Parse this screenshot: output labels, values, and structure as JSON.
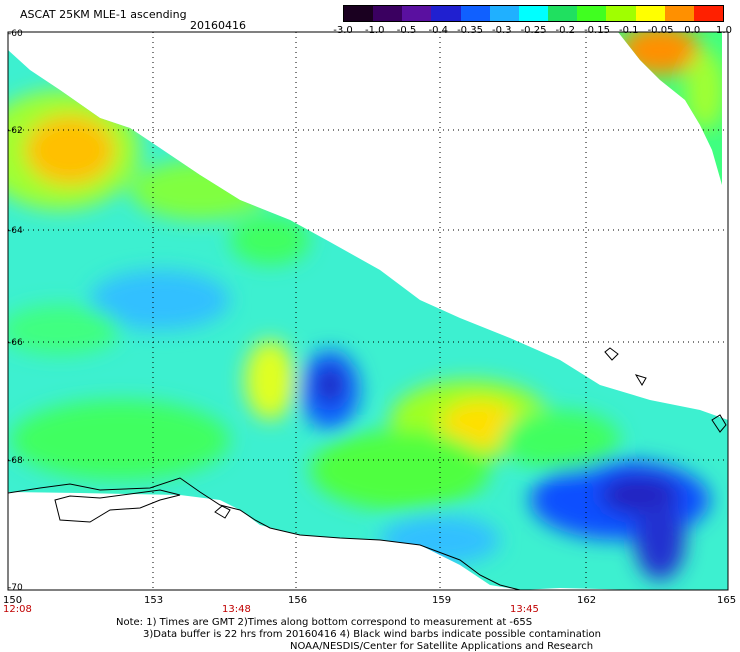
{
  "header": {
    "title": "ASCAT 25KM MLE-1 ascending",
    "date": "20160416"
  },
  "colorbar": {
    "labels": [
      "-3.0",
      "-1.0",
      "-0.5",
      "-0.4",
      "-0.35",
      "-0.3",
      "-0.25",
      "-0.2",
      "-0.15",
      "-0.1",
      "-0.05",
      "0.0",
      "1.0"
    ],
    "colors": [
      "#1a0020",
      "#3a0060",
      "#5a10a0",
      "#2020d0",
      "#1060ff",
      "#20b0ff",
      "#00ffff",
      "#20e060",
      "#40ff20",
      "#a0ff00",
      "#ffff00",
      "#ff9000",
      "#ff2000"
    ]
  },
  "axes": {
    "lat_labels": [
      "-60",
      "-62",
      "-64",
      "-66",
      "-68",
      "-70"
    ],
    "lon_labels": [
      "150",
      "153",
      "156",
      "159",
      "162",
      "165"
    ],
    "time_labels": [
      "12:08",
      "13:48",
      "13:45"
    ]
  },
  "notes": {
    "line1": "Note: 1) Times are GMT 2)Times along bottom correspond to measurement at -65S",
    "line2": "3)Data buffer is 22 hrs from 20160416 4) Black wind barbs indicate possible contamination",
    "line3": "NOAA/NESDIS/Center for Satellite Applications and Research"
  }
}
